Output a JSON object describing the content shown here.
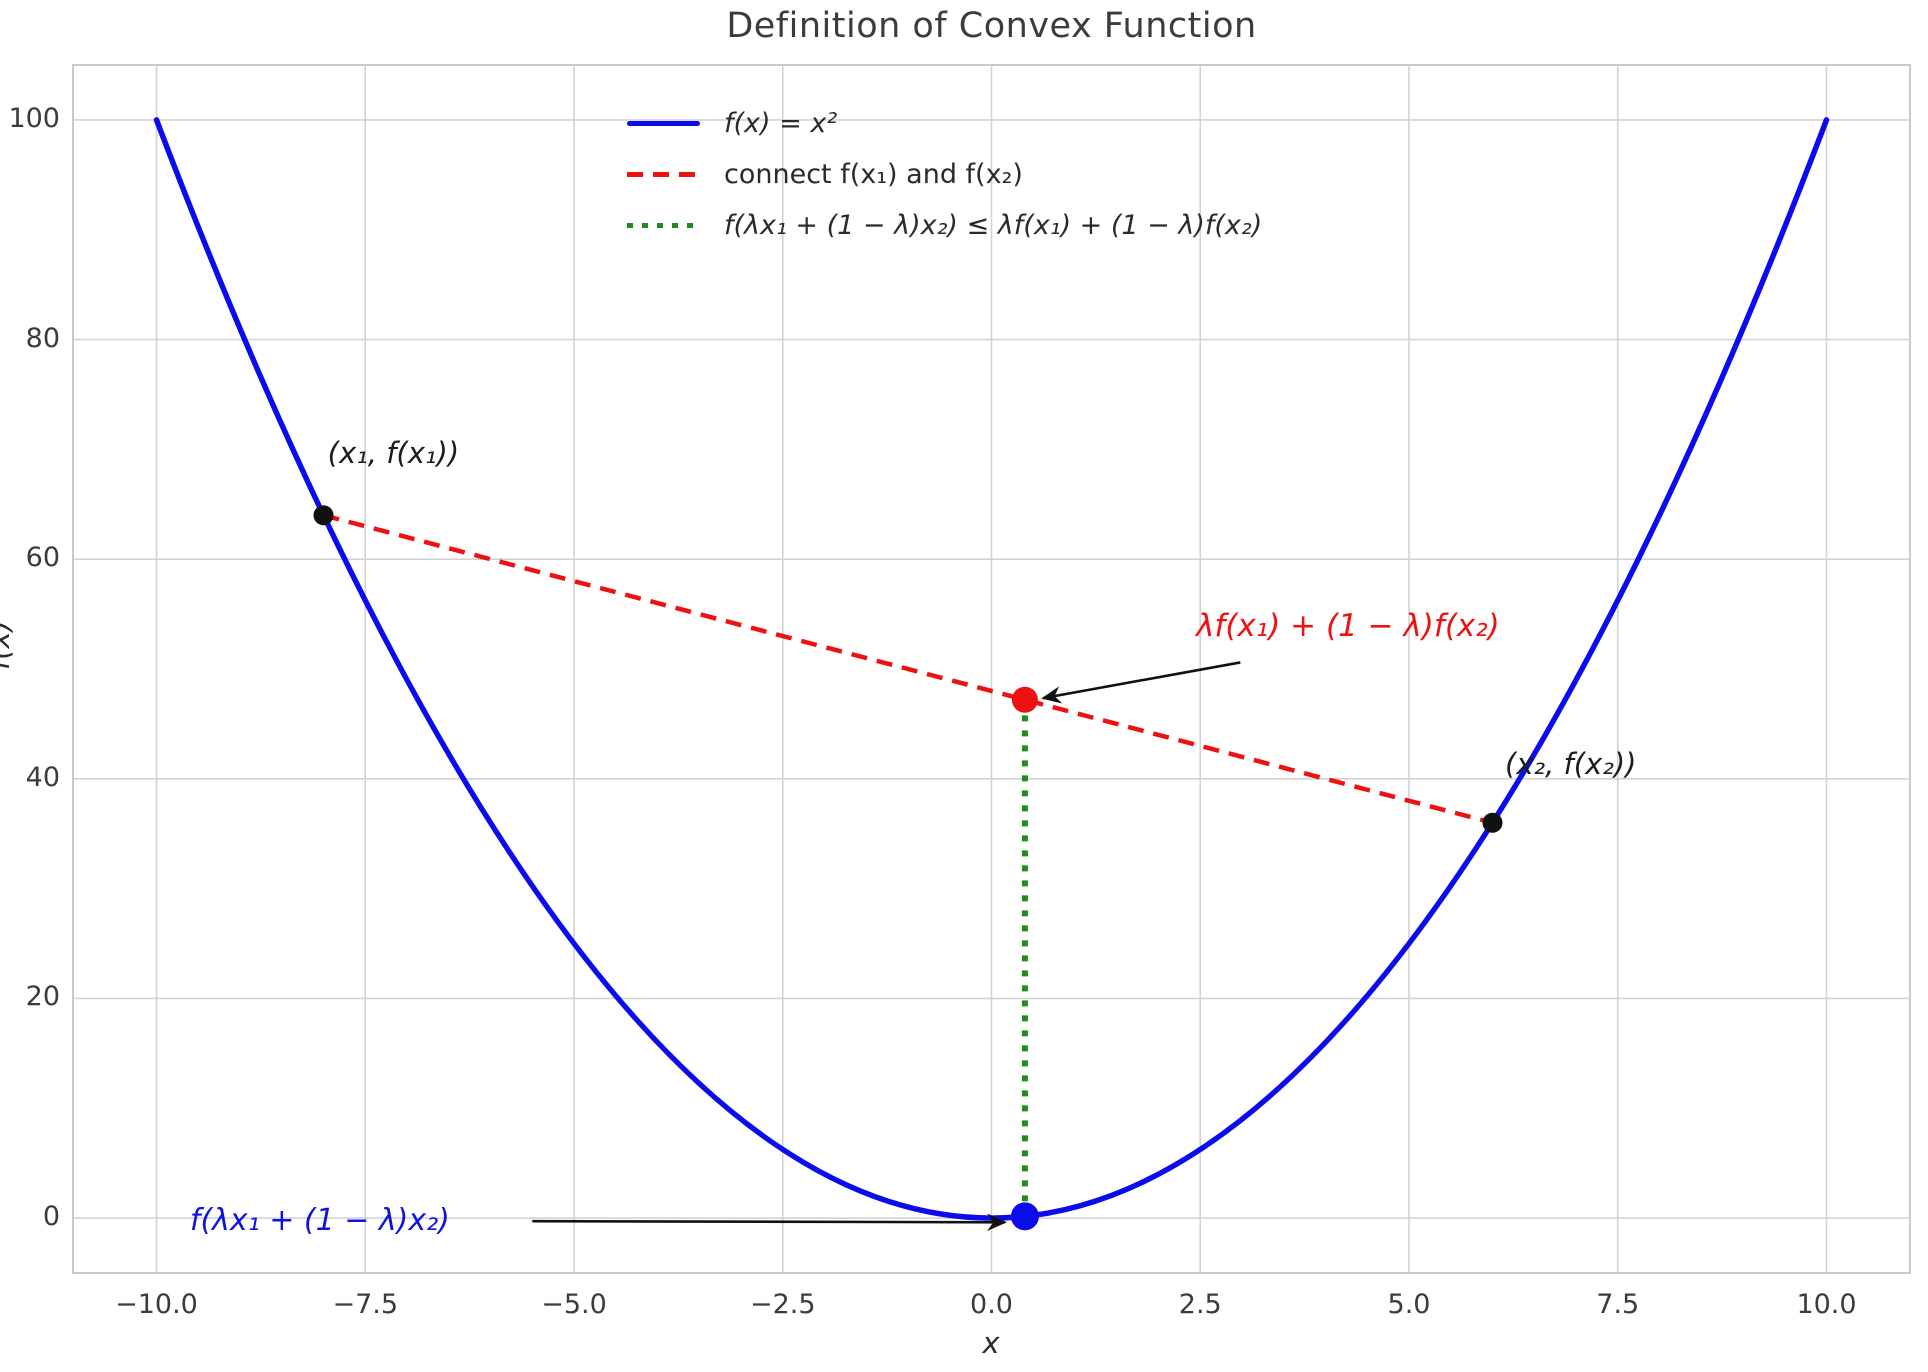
{
  "chart_data": {
    "type": "line",
    "title": "Definition of Convex Function",
    "xlabel": "x",
    "ylabel": "f(x)",
    "xlim": [
      -11,
      11
    ],
    "ylim": [
      -5,
      105
    ],
    "grid": true,
    "legend_position": "upper center-left, no frame",
    "colors": {
      "curve": "#0b0bee",
      "chord": "#ee1111",
      "vertical": "#1f8c1f",
      "points_black": "#111111",
      "arrow": "#111111",
      "grid": "#d2d2d2",
      "frame": "#c9c9c9",
      "annotation_upper": "#ee1111",
      "annotation_lower": "#1212dd",
      "annotation_black": "#1c1c1c"
    },
    "x_ticks": [
      {
        "v": -10,
        "label": "−10.0"
      },
      {
        "v": -7.5,
        "label": "−7.5"
      },
      {
        "v": -5,
        "label": "−5.0"
      },
      {
        "v": -2.5,
        "label": "−2.5"
      },
      {
        "v": 0,
        "label": "0.0"
      },
      {
        "v": 2.5,
        "label": "2.5"
      },
      {
        "v": 5,
        "label": "5.0"
      },
      {
        "v": 7.5,
        "label": "7.5"
      },
      {
        "v": 10,
        "label": "10.0"
      }
    ],
    "y_ticks": [
      {
        "v": 0,
        "label": "0"
      },
      {
        "v": 20,
        "label": "20"
      },
      {
        "v": 40,
        "label": "40"
      },
      {
        "v": 60,
        "label": "60"
      },
      {
        "v": 80,
        "label": "80"
      },
      {
        "v": 100,
        "label": "100"
      }
    ],
    "function": {
      "expr": "x^2",
      "x_min": -10,
      "x_max": 10
    },
    "lambda": 0.4,
    "legend": [
      {
        "label": "f(x) = x²",
        "style": "solid",
        "color": "#0b0bee"
      },
      {
        "label": "connect f(x₁) and f(x₂)",
        "style": "dashed",
        "color": "#ee1111"
      },
      {
        "label": "f(λx₁ + (1 − λ)x₂) ≤ λf(x₁) + (1 − λ)f(x₂)",
        "style": "dotted",
        "color": "#1f8c1f"
      }
    ],
    "points": [
      {
        "name": "point-x1",
        "x": -8,
        "y": 64,
        "color": "#111111",
        "r": 10
      },
      {
        "name": "point-x2",
        "x": 6,
        "y": 36,
        "color": "#111111",
        "r": 10
      },
      {
        "name": "point-chord",
        "x": 0.4,
        "y": 47.2,
        "color": "#ee1111",
        "r": 13
      },
      {
        "name": "point-curve",
        "x": 0.4,
        "y": 0.16,
        "color": "#0b0bee",
        "r": 14
      }
    ],
    "chord": {
      "from": {
        "x": -8,
        "y": 64
      },
      "to": {
        "x": 6,
        "y": 36
      }
    },
    "vertical_segment": {
      "from": {
        "x": 0.4,
        "y": 0.16
      },
      "to": {
        "x": 0.4,
        "y": 47.2
      }
    },
    "annotations": [
      {
        "id": "ann-x1",
        "text": "(x₁, f(x₁))",
        "x": -7.95,
        "y": 71.2,
        "color": "#1c1c1c"
      },
      {
        "id": "ann-x2",
        "text": "(x₂, f(x₂))",
        "x": 6.15,
        "y": 42.9,
        "color": "#1c1c1c"
      },
      {
        "id": "ann-upper",
        "text": "λf(x₁) + (1 − λ)f(x₂)",
        "x": 2.45,
        "y": 55.6,
        "color": "#ee1111"
      },
      {
        "id": "ann-lower",
        "text": "f(λx₁ + (1 − λ)x₂)",
        "x": -9.6,
        "y": 1.35,
        "color": "#1212dd"
      }
    ],
    "arrows": [
      {
        "name": "arrow-to-chord-point",
        "from": {
          "x": 2.98,
          "y": 50.6
        },
        "to": {
          "x": 0.62,
          "y": 47.35
        }
      },
      {
        "name": "arrow-to-curve-point",
        "from": {
          "x": -5.5,
          "y": -0.28
        },
        "to": {
          "x": 0.16,
          "y": -0.38
        }
      }
    ]
  }
}
